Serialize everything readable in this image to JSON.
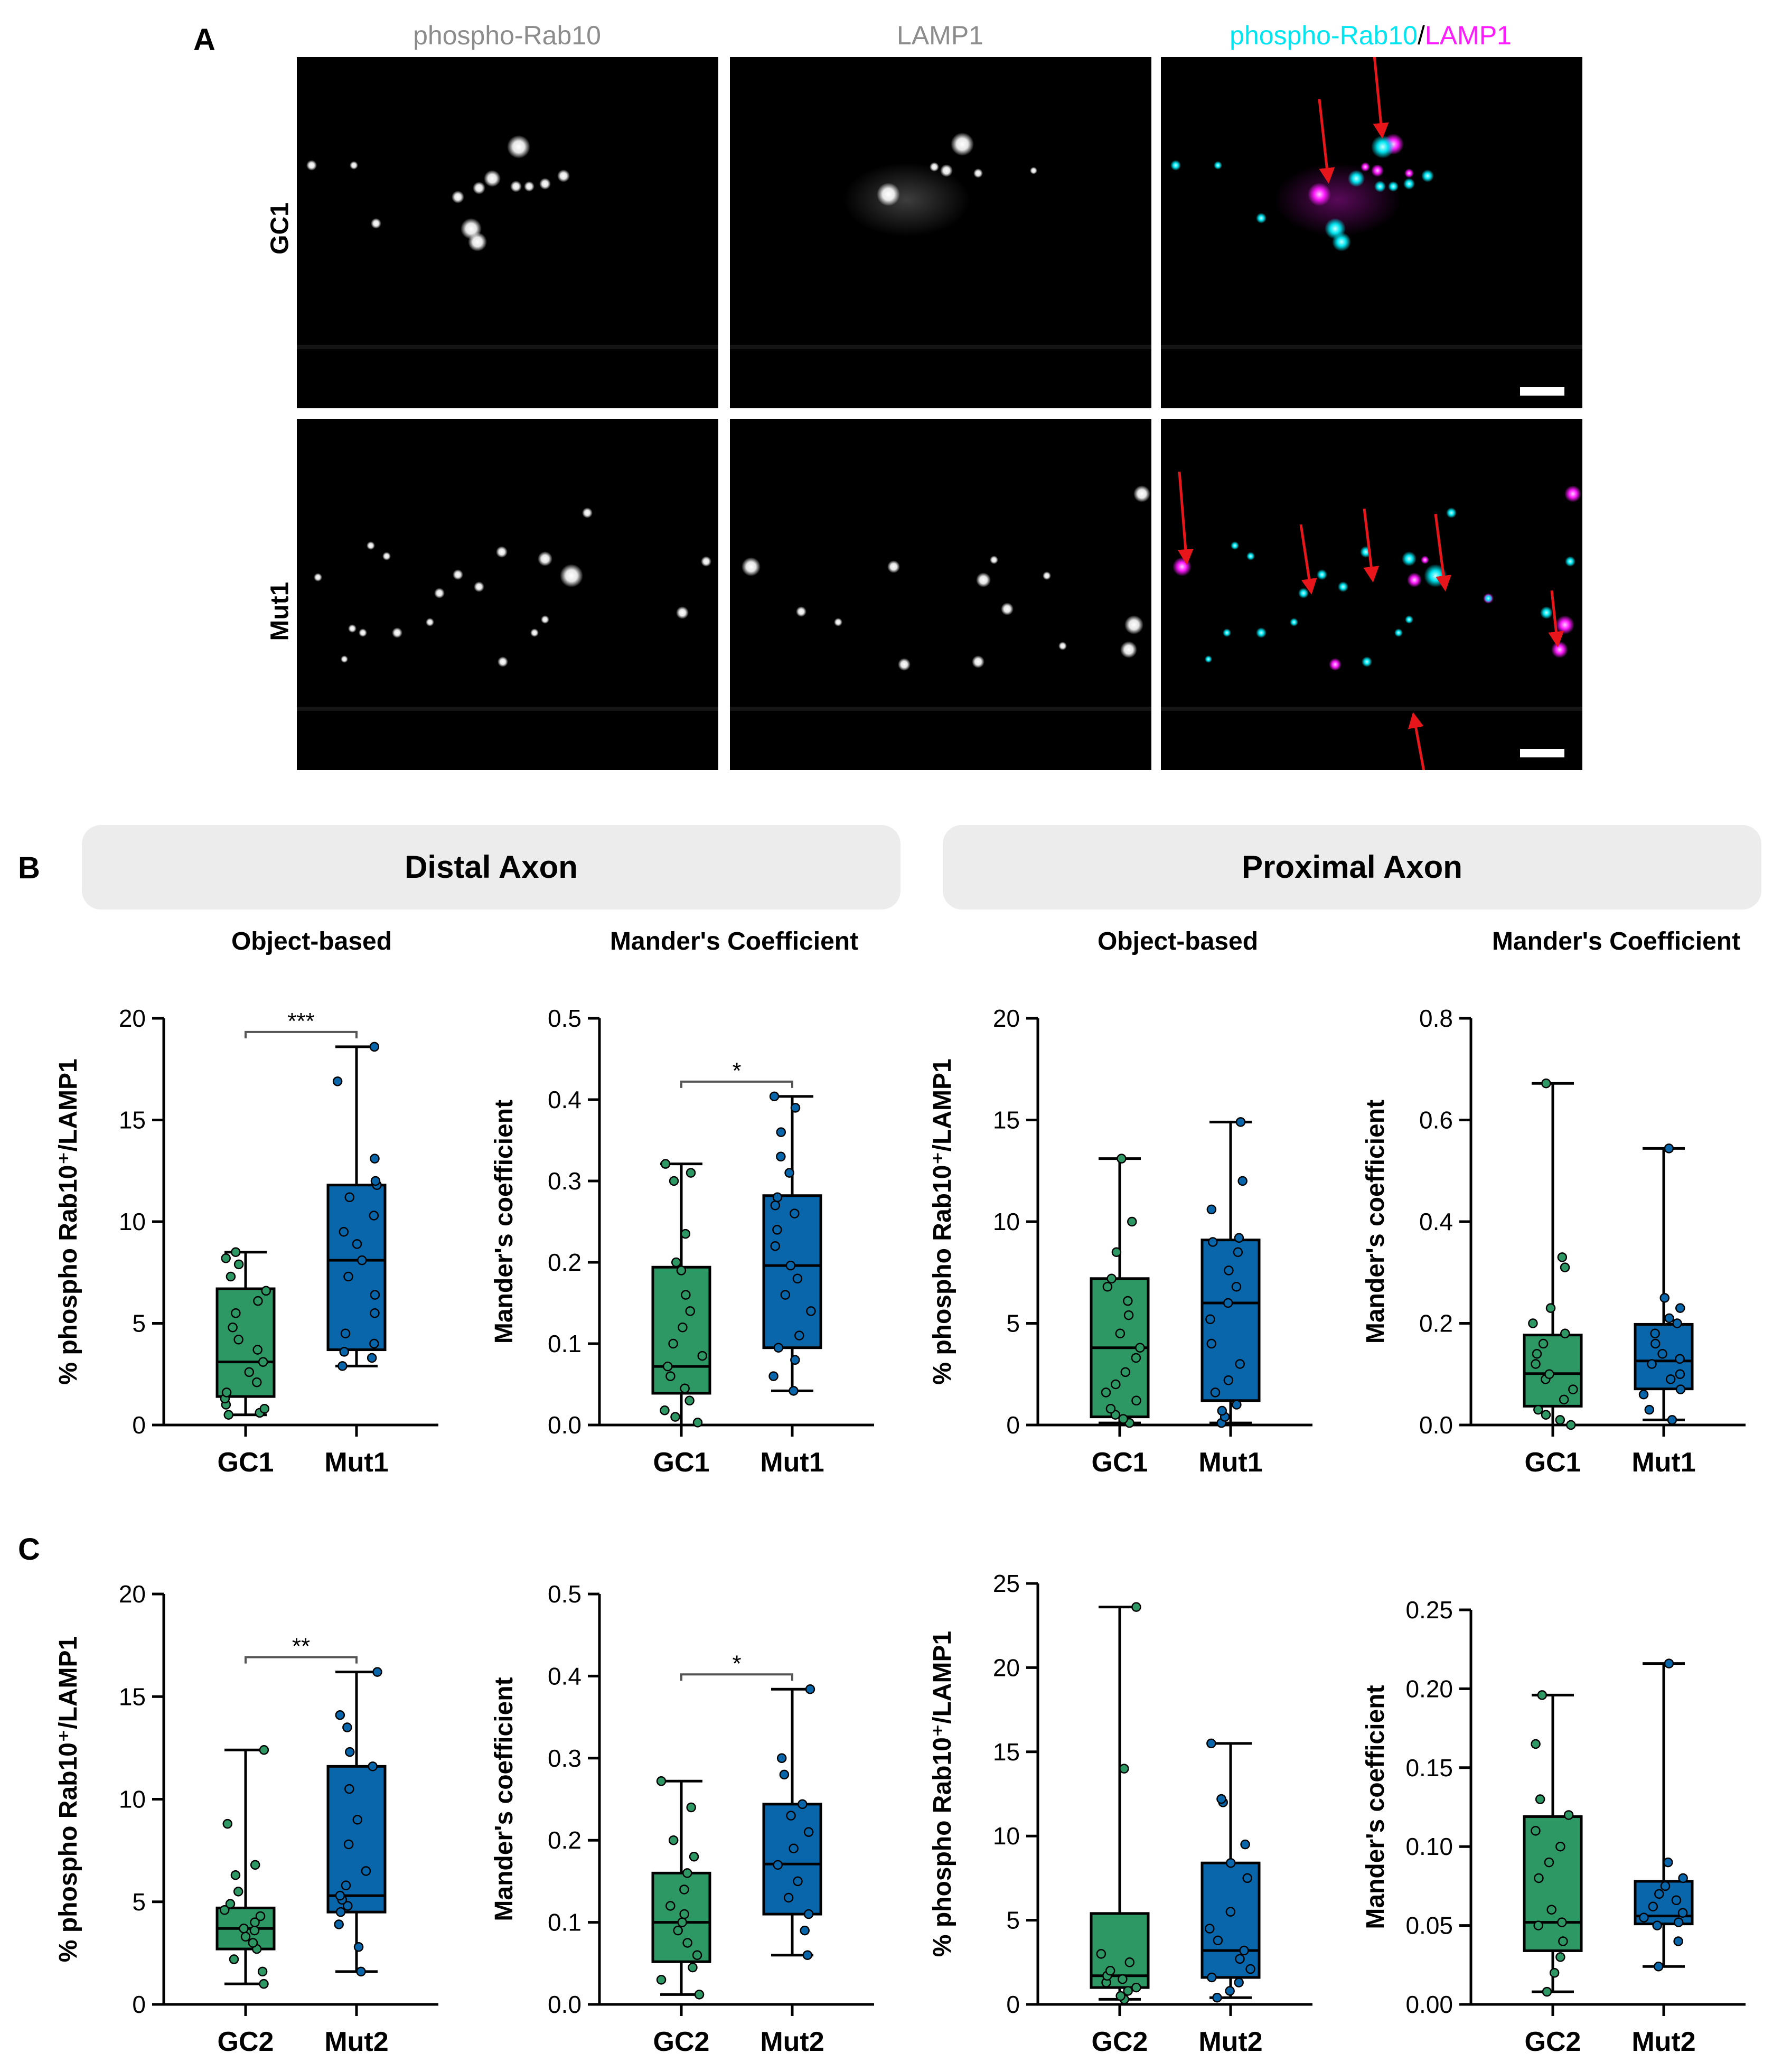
{
  "panels": {
    "a": "A",
    "b": "B",
    "c": "C"
  },
  "micrographs": {
    "channel_titles": [
      {
        "text": "phospho-Rab10",
        "color": "#8c8c8c"
      },
      {
        "text": "LAMP1",
        "color": "#8c8c8c"
      }
    ],
    "merge_title": {
      "part1": "phospho-Rab10",
      "sep": "/",
      "part2": "LAMP1"
    },
    "colors": {
      "cyan": "#00e5f0",
      "magenta": "#ff1aff",
      "arrow": "#e8161b"
    },
    "rows": [
      "GC1",
      "Mut1"
    ]
  },
  "sections": {
    "distal": "Distal Axon",
    "proximal": "Proximal Axon"
  },
  "plot_titles": {
    "object": "Object-based",
    "mander": "Mander's Coefficient"
  },
  "colors": {
    "green": "#2e9865",
    "blue": "#0a66ab"
  },
  "chart_data": [
    {
      "type": "box",
      "panel": "B",
      "section": "Distal Axon",
      "title": "Object-based",
      "ylabel": "% phospho Rab10⁺/LAMP1",
      "ylim": [
        0,
        20
      ],
      "yticks": [
        0,
        5,
        10,
        15,
        20
      ],
      "tick_labels": [
        "0",
        "5",
        "10",
        "15",
        "20"
      ],
      "categories": [
        "GC1",
        "Mut1"
      ],
      "significance": "***",
      "boxes": [
        {
          "min": 0.5,
          "q1": 1.4,
          "median": 3.1,
          "q3": 6.7,
          "max": 8.5
        },
        {
          "min": 2.9,
          "q1": 3.7,
          "median": 8.1,
          "q3": 11.8,
          "max": 18.6
        }
      ],
      "points": [
        [
          0.5,
          0.6,
          0.8,
          1.0,
          1.3,
          1.6,
          2.1,
          2.6,
          3.1,
          3.7,
          4.2,
          4.8,
          5.5,
          6.1,
          6.6,
          7.3,
          7.9,
          8.2,
          8.5
        ],
        [
          2.9,
          3.3,
          3.6,
          4.0,
          4.5,
          5.5,
          6.4,
          7.3,
          8.1,
          8.9,
          9.5,
          10.3,
          11.2,
          11.8,
          12.0,
          13.1,
          16.9,
          18.6
        ]
      ]
    },
    {
      "type": "box",
      "panel": "B",
      "section": "Distal Axon",
      "title": "Mander's Coefficient",
      "ylabel": "Mander's coefficient",
      "ylim": [
        0,
        0.5
      ],
      "yticks": [
        0,
        0.1,
        0.2,
        0.3,
        0.4,
        0.5
      ],
      "tick_labels": [
        "0.0",
        "0.1",
        "0.2",
        "0.3",
        "0.4",
        "0.5"
      ],
      "categories": [
        "GC1",
        "Mut1"
      ],
      "significance": "*",
      "boxes": [
        {
          "min": 0.0,
          "q1": 0.039,
          "median": 0.072,
          "q3": 0.194,
          "max": 0.321
        },
        {
          "min": 0.042,
          "q1": 0.095,
          "median": 0.196,
          "q3": 0.282,
          "max": 0.404
        }
      ],
      "points": [
        [
          0.003,
          0.01,
          0.018,
          0.03,
          0.045,
          0.06,
          0.072,
          0.085,
          0.1,
          0.12,
          0.14,
          0.16,
          0.19,
          0.2,
          0.235,
          0.3,
          0.31,
          0.321
        ],
        [
          0.042,
          0.06,
          0.08,
          0.095,
          0.11,
          0.14,
          0.16,
          0.18,
          0.196,
          0.22,
          0.24,
          0.26,
          0.27,
          0.28,
          0.31,
          0.33,
          0.36,
          0.39,
          0.404
        ]
      ]
    },
    {
      "type": "box",
      "panel": "B",
      "section": "Proximal Axon",
      "title": "Object-based",
      "ylabel": "% phospho Rab10⁺/LAMP1",
      "ylim": [
        0,
        20
      ],
      "yticks": [
        0,
        5,
        10,
        15,
        20
      ],
      "tick_labels": [
        "0",
        "5",
        "10",
        "15",
        "20"
      ],
      "categories": [
        "GC1",
        "Mut1"
      ],
      "significance": "",
      "boxes": [
        {
          "min": 0.1,
          "q1": 0.4,
          "median": 3.8,
          "q3": 7.2,
          "max": 13.1
        },
        {
          "min": 0.1,
          "q1": 1.2,
          "median": 6.0,
          "q3": 9.1,
          "max": 14.9
        }
      ],
      "points": [
        [
          0.1,
          0.3,
          0.5,
          0.8,
          1.2,
          1.6,
          2.0,
          2.6,
          3.3,
          3.8,
          4.5,
          5.4,
          6.1,
          6.8,
          7.2,
          8.5,
          10.0,
          13.1
        ],
        [
          0.1,
          0.4,
          0.7,
          1.0,
          1.6,
          2.2,
          3.0,
          4.0,
          5.2,
          6.0,
          6.8,
          7.6,
          8.5,
          9.0,
          9.2,
          10.6,
          12.0,
          14.9
        ]
      ]
    },
    {
      "type": "box",
      "panel": "B",
      "section": "Proximal Axon",
      "title": "Mander's Coefficient",
      "ylabel": "Mander's coefficient",
      "ylim": [
        0,
        0.8
      ],
      "yticks": [
        0,
        0.2,
        0.4,
        0.6,
        0.8
      ],
      "tick_labels": [
        "0.0",
        "0.2",
        "0.4",
        "0.6",
        "0.8"
      ],
      "categories": [
        "GC1",
        "Mut1"
      ],
      "significance": "",
      "boxes": [
        {
          "min": 0.0,
          "q1": 0.037,
          "median": 0.101,
          "q3": 0.177,
          "max": 0.672
        },
        {
          "min": 0.01,
          "q1": 0.071,
          "median": 0.126,
          "q3": 0.198,
          "max": 0.544
        }
      ],
      "points": [
        [
          0.0,
          0.01,
          0.02,
          0.03,
          0.05,
          0.07,
          0.09,
          0.1,
          0.12,
          0.14,
          0.16,
          0.18,
          0.2,
          0.23,
          0.31,
          0.33,
          0.672
        ],
        [
          0.01,
          0.03,
          0.06,
          0.07,
          0.09,
          0.1,
          0.12,
          0.13,
          0.14,
          0.16,
          0.18,
          0.2,
          0.21,
          0.23,
          0.25,
          0.544
        ]
      ]
    },
    {
      "type": "box",
      "panel": "C",
      "section": "Distal Axon",
      "title": "Object-based",
      "ylabel": "% phospho Rab10⁺/LAMP1",
      "ylim": [
        0,
        20
      ],
      "yticks": [
        0,
        5,
        10,
        15,
        20
      ],
      "tick_labels": [
        "0",
        "5",
        "10",
        "15",
        "20"
      ],
      "categories": [
        "GC2",
        "Mut2"
      ],
      "significance": "**",
      "boxes": [
        {
          "min": 1.0,
          "q1": 2.7,
          "median": 3.7,
          "q3": 4.7,
          "max": 12.4
        },
        {
          "min": 1.6,
          "q1": 4.5,
          "median": 5.3,
          "q3": 11.6,
          "max": 16.2
        }
      ],
      "points": [
        [
          1.0,
          1.6,
          2.2,
          2.7,
          3.0,
          3.3,
          3.6,
          3.7,
          4.0,
          4.3,
          4.6,
          4.9,
          5.5,
          6.3,
          6.8,
          8.8,
          12.4
        ],
        [
          1.6,
          2.8,
          3.9,
          4.5,
          4.8,
          5.1,
          5.3,
          5.8,
          6.5,
          7.8,
          9.0,
          10.5,
          11.6,
          12.3,
          13.5,
          14.1,
          16.2
        ]
      ]
    },
    {
      "type": "box",
      "panel": "C",
      "section": "Distal Axon",
      "title": "Mander's Coefficient",
      "ylabel": "Mander's coefficient",
      "ylim": [
        0,
        0.5
      ],
      "yticks": [
        0,
        0.1,
        0.2,
        0.3,
        0.4,
        0.5
      ],
      "tick_labels": [
        "0.0",
        "0.1",
        "0.2",
        "0.3",
        "0.4",
        "0.5"
      ],
      "categories": [
        "GC2",
        "Mut2"
      ],
      "significance": "*",
      "boxes": [
        {
          "min": 0.012,
          "q1": 0.052,
          "median": 0.1,
          "q3": 0.16,
          "max": 0.272
        },
        {
          "min": 0.06,
          "q1": 0.11,
          "median": 0.171,
          "q3": 0.244,
          "max": 0.384
        }
      ],
      "points": [
        [
          0.012,
          0.03,
          0.045,
          0.06,
          0.075,
          0.09,
          0.1,
          0.11,
          0.12,
          0.14,
          0.16,
          0.18,
          0.2,
          0.24,
          0.272
        ],
        [
          0.06,
          0.09,
          0.11,
          0.13,
          0.15,
          0.17,
          0.19,
          0.21,
          0.23,
          0.244,
          0.28,
          0.3,
          0.384
        ]
      ]
    },
    {
      "type": "box",
      "panel": "C",
      "section": "Proximal Axon",
      "title": "Object-based",
      "ylabel": "% phospho Rab10⁺/LAMP1",
      "ylim": [
        0,
        25
      ],
      "yticks": [
        0,
        5,
        10,
        15,
        20,
        25
      ],
      "tick_labels": [
        "0",
        "5",
        "10",
        "15",
        "20",
        "25"
      ],
      "categories": [
        "GC2",
        "Mut2"
      ],
      "significance": "",
      "boxes": [
        {
          "min": 0.3,
          "q1": 1.0,
          "median": 1.7,
          "q3": 5.4,
          "max": 23.6
        },
        {
          "min": 0.4,
          "q1": 1.6,
          "median": 3.2,
          "q3": 8.4,
          "max": 15.5
        }
      ],
      "points": [
        [
          0.3,
          0.5,
          0.8,
          1.0,
          1.3,
          1.5,
          1.7,
          2.0,
          2.5,
          3.0,
          14.0,
          23.6
        ],
        [
          0.4,
          0.8,
          1.3,
          1.6,
          2.1,
          2.7,
          3.2,
          3.8,
          4.5,
          5.5,
          7.5,
          8.4,
          9.5,
          12.0,
          12.2,
          15.5
        ]
      ]
    },
    {
      "type": "box",
      "panel": "C",
      "section": "Proximal Axon",
      "title": "Mander's Coefficient",
      "ylabel": "Mander's coefficient",
      "ylim": [
        0,
        0.25
      ],
      "yticks": [
        0,
        0.05,
        0.1,
        0.15,
        0.2,
        0.25
      ],
      "tick_labels": [
        "0.00",
        "0.05",
        "0.10",
        "0.15",
        "0.20",
        "0.25"
      ],
      "categories": [
        "GC2",
        "Mut2"
      ],
      "significance": "",
      "boxes": [
        {
          "min": 0.008,
          "q1": 0.034,
          "median": 0.052,
          "q3": 0.119,
          "max": 0.196
        },
        {
          "min": 0.024,
          "q1": 0.051,
          "median": 0.056,
          "q3": 0.078,
          "max": 0.216
        }
      ],
      "points": [
        [
          0.008,
          0.02,
          0.03,
          0.04,
          0.05,
          0.052,
          0.06,
          0.08,
          0.09,
          0.1,
          0.11,
          0.12,
          0.13,
          0.165,
          0.196
        ],
        [
          0.024,
          0.04,
          0.05,
          0.052,
          0.055,
          0.058,
          0.062,
          0.066,
          0.07,
          0.075,
          0.08,
          0.09,
          0.216
        ]
      ]
    }
  ]
}
